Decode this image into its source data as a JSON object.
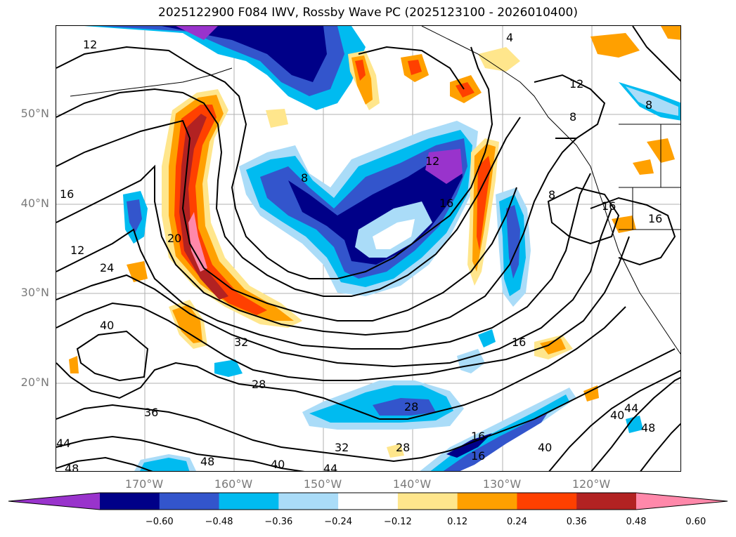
{
  "title": "2025122900 F084 IWV, Rossby Wave PC (2025123100 - 2026010400)",
  "map": {
    "lat_labels": [
      "50°N",
      "40°N",
      "30°N",
      "20°N"
    ],
    "lon_labels": [
      "170°W",
      "160°W",
      "150°W",
      "140°W",
      "130°W",
      "120°W"
    ],
    "contour_labels": [
      "12",
      "4",
      "12",
      "8",
      "8",
      "8",
      "12",
      "16",
      "16",
      "16",
      "16",
      "12",
      "20",
      "24",
      "32",
      "40",
      "16",
      "28",
      "36",
      "28",
      "44",
      "32",
      "28",
      "40",
      "48",
      "48",
      "40",
      "44",
      "40",
      "44",
      "48",
      "16",
      "8",
      "16"
    ]
  },
  "colorbar": {
    "colors": [
      "#9933cc",
      "#000088",
      "#3355cc",
      "#00bbf0",
      "#aadcf8",
      "#ffffff",
      "#ffe68c",
      "#ffa000",
      "#ff4000",
      "#b22222",
      "#ff88aa"
    ],
    "tick_labels": [
      "−0.60",
      "−0.48",
      "−0.36",
      "−0.24",
      "−0.12",
      "0.12",
      "0.24",
      "0.36",
      "0.48",
      "0.60"
    ],
    "extend": "both"
  }
}
